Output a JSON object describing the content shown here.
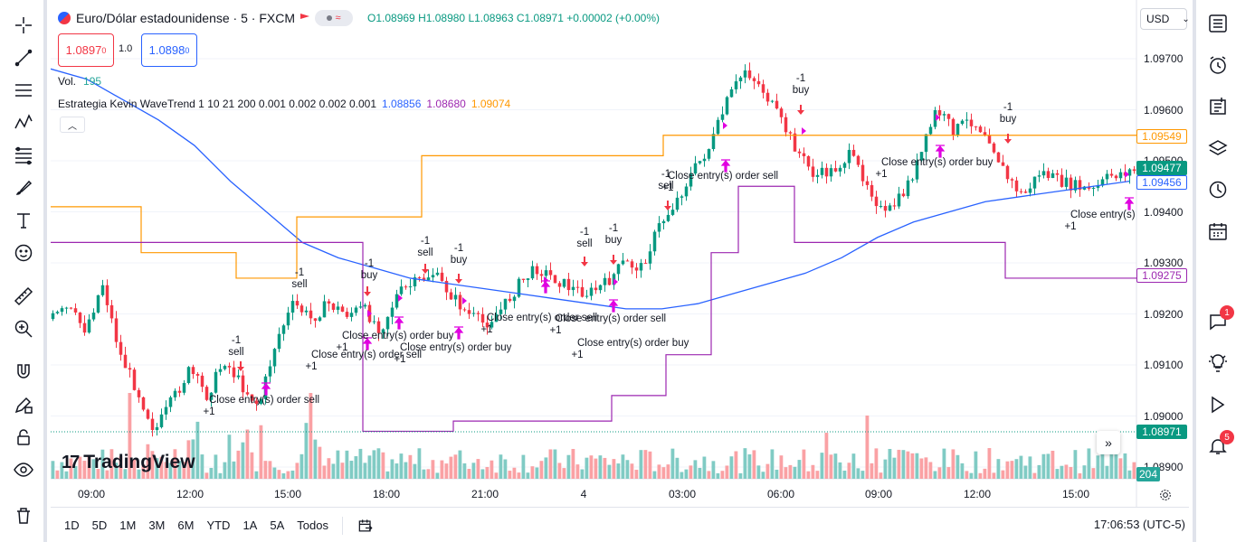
{
  "header": {
    "symbol": "Euro/Dólar estadounidense · 5 · FXCM",
    "ohlc": {
      "o": "O1.08969",
      "h": "H1.08980",
      "l": "L1.08963",
      "c": "C1.08971",
      "chg": "+0.00002 (+0.00%)"
    },
    "sell_price": "1.0897",
    "sell_price_sup": "0",
    "spread": "1.0",
    "buy_price": "1.0898",
    "buy_price_sup": "0",
    "pill_glyph": "≈",
    "currency": "USD"
  },
  "indicators": {
    "volume_label": "Vol.",
    "volume_value": "195",
    "strategy_label": "Estrategia Kevin WaveTrend 1 10 21 200 0.001 0.002 0.002 0.001",
    "strategy_values": [
      "1.08856",
      "1.08680",
      "1.09074"
    ]
  },
  "price_axis": {
    "labels": [
      "1.09700",
      "1.09600",
      "1.09500",
      "1.09400",
      "1.09300",
      "1.09200",
      "1.09100",
      "1.09000",
      "1.08900"
    ],
    "tags": [
      {
        "value": "1.09549",
        "color": "#ff9800"
      },
      {
        "value": "1.09477",
        "color": "#089981"
      },
      {
        "value": "1.09456",
        "color": "#2962ff"
      },
      {
        "value": "1.09275",
        "color": "#9c27b0"
      },
      {
        "value": "1.08971",
        "color": "#089981"
      },
      {
        "value": "204",
        "color": "#26a69a"
      }
    ]
  },
  "time_axis": [
    "09:00",
    "12:00",
    "15:00",
    "18:00",
    "21:00",
    "4",
    "03:00",
    "06:00",
    "09:00",
    "12:00",
    "15:00"
  ],
  "chart_data": {
    "type": "candlestick",
    "symbol": "EURUSD",
    "interval": "5",
    "ylim": [
      1.0885,
      1.0975
    ],
    "series": [
      {
        "name": "price_path",
        "values": [
          1.0919,
          1.0921,
          1.0917,
          1.0926,
          1.0912,
          1.0905,
          1.0897,
          1.0903,
          1.0909,
          1.0904,
          1.0911,
          1.0906,
          1.0902,
          1.0915,
          1.0922,
          1.0919,
          1.0922,
          1.092,
          1.0921,
          1.0917,
          1.0924,
          1.0926,
          1.0928,
          1.0924,
          1.092,
          1.0918,
          1.0921,
          1.0926,
          1.0929,
          1.0927,
          1.0925,
          1.0924,
          1.0926,
          1.093,
          1.0929,
          1.0937,
          1.0942,
          1.0948,
          1.0953,
          1.0962,
          1.0968,
          1.0964,
          1.0958,
          1.0952,
          1.0947,
          1.0948,
          1.0951,
          1.0946,
          1.0939,
          1.0943,
          1.095,
          1.096,
          1.0956,
          1.0958,
          1.0955,
          1.0947,
          1.0943,
          1.0948,
          1.0946,
          1.0945,
          1.0944,
          1.0947,
          1.0948
        ]
      },
      {
        "name": "",
        "values": [
          1.0968,
          1.0966,
          1.0962,
          1.0958,
          1.0953,
          1.0946,
          1.094,
          1.0934,
          1.0931,
          1.0929,
          1.0927,
          1.0926,
          1.0925,
          1.0924,
          1.0923,
          1.0922,
          1.0921,
          1.0921,
          1.0922,
          1.0924,
          1.0926,
          1.0928,
          1.0931,
          1.0935,
          1.0938,
          1.094,
          1.0942,
          1.0943,
          1.0944,
          1.0945,
          1.0946
        ]
      },
      {
        "name": "",
        "values": [
          1.0941,
          1.0941,
          1.0932,
          1.0932,
          1.0927,
          1.0927,
          1.0939,
          1.0939,
          1.0951,
          1.0951,
          1.0955,
          1.0955,
          1.0955,
          1.0955,
          1.0955
        ]
      },
      {
        "name": "",
        "values": [
          1.0934,
          1.0934,
          1.0897,
          1.0897,
          1.0899,
          1.0899,
          1.0904,
          1.0904,
          1.0912,
          1.0912,
          1.0932,
          1.0932,
          1.0945,
          1.0945,
          1.0934,
          1.0934,
          1.0927,
          1.0927
        ]
      }
    ],
    "annotations": [
      {
        "label": "-1 sell",
        "time": "14:00"
      },
      {
        "label": "Close entry(s) order sell +1",
        "time": "14:30"
      },
      {
        "label": "-1 sell",
        "time": "15:30"
      },
      {
        "label": "-1 buy",
        "time": "17:30"
      },
      {
        "label": "Close entry(s) order sell +1",
        "time": "17:40"
      },
      {
        "label": "Close entry(s) order buy +1",
        "time": "18:10"
      },
      {
        "label": "-1 sell",
        "time": "19:00"
      },
      {
        "label": "-1 buy",
        "time": "20:00"
      },
      {
        "label": "Close entry(s) order buy +1",
        "time": "20:00"
      },
      {
        "label": "Close entry(s) order sell +1",
        "time": "22:40"
      },
      {
        "label": "-1 sell",
        "time": "00:00"
      },
      {
        "label": "-1 buy",
        "time": "00:40"
      },
      {
        "label": "Close entry(s) order sell +1",
        "time": "01:00"
      },
      {
        "label": "Close entry(s) order buy +1",
        "time": "01:30"
      },
      {
        "label": "-1 sell",
        "time": "02:40"
      },
      {
        "label": "Close entry(s) order sell +1",
        "time": "04:00"
      },
      {
        "label": "-1 buy",
        "time": "06:20"
      },
      {
        "label": "Close entry(s) order buy +1",
        "time": "11:00"
      },
      {
        "label": "-1 buy",
        "time": "13:00"
      },
      {
        "label": "Close entry(s) +1",
        "time": "16:00"
      }
    ]
  },
  "labels": {
    "minus_one": "-1",
    "plus_one": "+1",
    "sell": "sell",
    "buy": "buy",
    "close_sell": "Close entry(s) order sell",
    "close_buy": "Close entry(s) order buy",
    "close_generic": "Close entry(s)"
  },
  "branding": {
    "logo_text": "TradingView",
    "logo_mark": "17"
  },
  "bottom_bar": {
    "ranges": [
      "1D",
      "5D",
      "1M",
      "3M",
      "6M",
      "YTD",
      "1A",
      "5A",
      "Todos"
    ],
    "clock": "17:06:53 (UTC-5)"
  },
  "right_toolbar": {
    "chat_badge": "1",
    "alerts_badge": "5"
  },
  "colors": {
    "up": "#089981",
    "down": "#f23645",
    "ma": "#2962ff",
    "upper": "#ff9800",
    "lower": "#9c27b0",
    "entry_marker": "#e91e63",
    "exit_marker": "#e000e0",
    "vol_up": "#80cbc4",
    "vol_down": "#faa1a4"
  }
}
